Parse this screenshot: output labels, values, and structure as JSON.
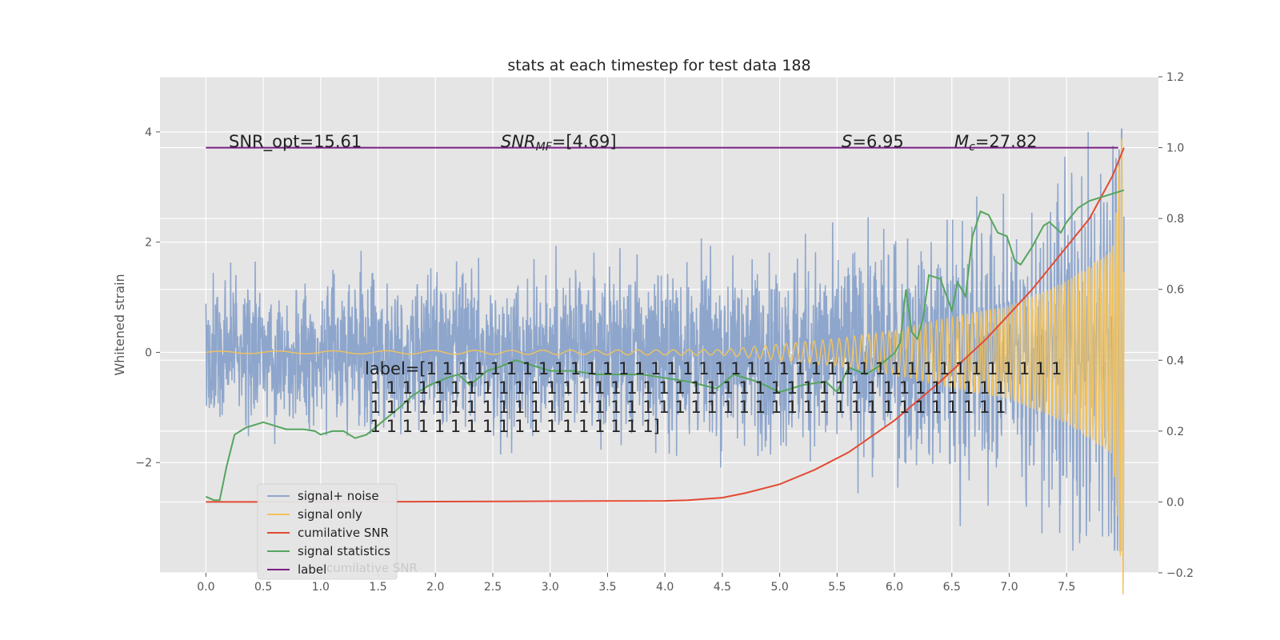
{
  "chart_data": {
    "type": "line",
    "title": "stats at each timestep for test data 188",
    "ylabel": "Whitened strain",
    "xlim": [
      -0.4,
      8.3
    ],
    "ylim_left": [
      -4.0,
      5.0
    ],
    "ylim_right": [
      -0.2,
      1.2
    ],
    "grid": true,
    "x_ticks": [
      "0.0",
      "0.5",
      "1.0",
      "1.5",
      "2.0",
      "2.5",
      "3.0",
      "3.5",
      "4.0",
      "4.5",
      "5.0",
      "5.5",
      "6.0",
      "6.5",
      "7.0",
      "7.5"
    ],
    "y_ticks_left": [
      "4",
      "2",
      "0",
      "−2"
    ],
    "y_ticks_right": [
      "1.2",
      "1.0",
      "0.8",
      "0.6",
      "0.4",
      "0.2",
      "0.0",
      "−0.2"
    ],
    "annotations": {
      "snr_opt": "SNR_opt=15.61",
      "snr_mf_sym": "SNR",
      "snr_mf_sub": "MF",
      "snr_mf_val": "=[4.69]",
      "s_sym": "S",
      "s_val": "=6.95",
      "mc_sym": "M",
      "mc_sub": "c",
      "mc_val": "=27.82",
      "label_lines": [
        "label=[1 1 1 1 1 1 1 1 1 1 1 1 1 1 1 1 1 1 1 1 1 1 1 1 1 1 1 1 1 1 1 1 1 1 1 1 1 1 1 1",
        " 1 1 1 1 1 1 1 1 1 1 1 1 1 1 1 1 1 1 1 1 1 1 1 1 1 1 1 1 1 1 1 1 1 1 1 1 1 1 1 1",
        " 1 1 1 1 1 1 1 1 1 1 1 1 1 1 1 1 1 1 1 1 1 1 1 1 1 1 1 1 1 1 1 1 1 1 1 1 1 1 1 1",
        " 1 1 1 1 1 1 1 1 1 1 1 1 1 1 1 1 1 1]"
      ]
    },
    "legend": {
      "location": "lower-left",
      "entries": [
        "signal+ noise",
        "signal only",
        "cumilative SNR",
        "signal statistics",
        "label"
      ],
      "ghost_text": "cumilative SNR"
    },
    "series": [
      {
        "name": "signal+ noise",
        "axis": "left",
        "color": "#8ea6cc",
        "kind": "noise",
        "x_range": [
          0.0,
          8.0
        ],
        "std_start": 0.62,
        "std_end": 1.1,
        "peak_max": 4.05,
        "peak_min": -3.6
      },
      {
        "name": "signal only",
        "axis": "left",
        "color": "#f2c25c",
        "kind": "chirp",
        "x_range": [
          0.0,
          8.0
        ],
        "amplitude_points": [
          [
            0.0,
            0.02
          ],
          [
            4.5,
            0.05
          ],
          [
            5.0,
            0.15
          ],
          [
            5.5,
            0.25
          ],
          [
            6.0,
            0.4
          ],
          [
            6.5,
            0.65
          ],
          [
            7.0,
            0.85
          ],
          [
            7.5,
            1.3
          ],
          [
            7.9,
            1.85
          ],
          [
            8.0,
            4.65
          ]
        ]
      },
      {
        "name": "cumilative SNR",
        "axis": "right",
        "color": "#e24a33",
        "x": [
          0.0,
          1.0,
          2.0,
          3.0,
          4.0,
          4.2,
          4.5,
          4.7,
          5.0,
          5.3,
          5.6,
          6.0,
          6.4,
          6.8,
          7.2,
          7.5,
          7.7,
          7.9,
          8.0
        ],
        "y": [
          0.0,
          0.0,
          0.001,
          0.002,
          0.003,
          0.005,
          0.012,
          0.025,
          0.05,
          0.09,
          0.14,
          0.23,
          0.34,
          0.46,
          0.6,
          0.72,
          0.8,
          0.92,
          1.0
        ]
      },
      {
        "name": "signal statistics",
        "axis": "right",
        "color": "#56a55f",
        "x": [
          0.0,
          0.07,
          0.12,
          0.18,
          0.25,
          0.35,
          0.5,
          0.6,
          0.7,
          0.85,
          0.95,
          1.0,
          1.1,
          1.2,
          1.25,
          1.3,
          1.4,
          1.55,
          1.7,
          1.8,
          1.95,
          2.1,
          2.2,
          2.3,
          2.45,
          2.55,
          2.7,
          2.9,
          3.0,
          3.2,
          3.4,
          3.6,
          3.8,
          4.0,
          4.2,
          4.45,
          4.6,
          4.8,
          5.0,
          5.2,
          5.4,
          5.5,
          5.6,
          5.75,
          5.85,
          6.0,
          6.05,
          6.1,
          6.15,
          6.2,
          6.25,
          6.3,
          6.4,
          6.5,
          6.55,
          6.62,
          6.68,
          6.75,
          6.82,
          6.9,
          6.98,
          7.05,
          7.1,
          7.2,
          7.3,
          7.35,
          7.45,
          7.5,
          7.6,
          7.7,
          7.8,
          7.9,
          8.0
        ],
        "y": [
          0.015,
          0.005,
          0.005,
          0.1,
          0.19,
          0.21,
          0.225,
          0.215,
          0.205,
          0.205,
          0.2,
          0.19,
          0.2,
          0.2,
          0.19,
          0.18,
          0.19,
          0.23,
          0.27,
          0.3,
          0.33,
          0.35,
          0.36,
          0.33,
          0.37,
          0.38,
          0.4,
          0.38,
          0.37,
          0.37,
          0.36,
          0.36,
          0.36,
          0.35,
          0.34,
          0.32,
          0.36,
          0.34,
          0.31,
          0.33,
          0.34,
          0.31,
          0.38,
          0.36,
          0.38,
          0.42,
          0.45,
          0.6,
          0.48,
          0.46,
          0.52,
          0.64,
          0.63,
          0.54,
          0.62,
          0.58,
          0.75,
          0.82,
          0.81,
          0.76,
          0.75,
          0.68,
          0.67,
          0.72,
          0.78,
          0.79,
          0.76,
          0.79,
          0.83,
          0.85,
          0.86,
          0.87,
          0.88
        ]
      },
      {
        "name": "label",
        "axis": "right",
        "color": "#7b1f86",
        "x": [
          0.0,
          7.95
        ],
        "y": [
          1.0,
          1.0
        ]
      }
    ]
  }
}
